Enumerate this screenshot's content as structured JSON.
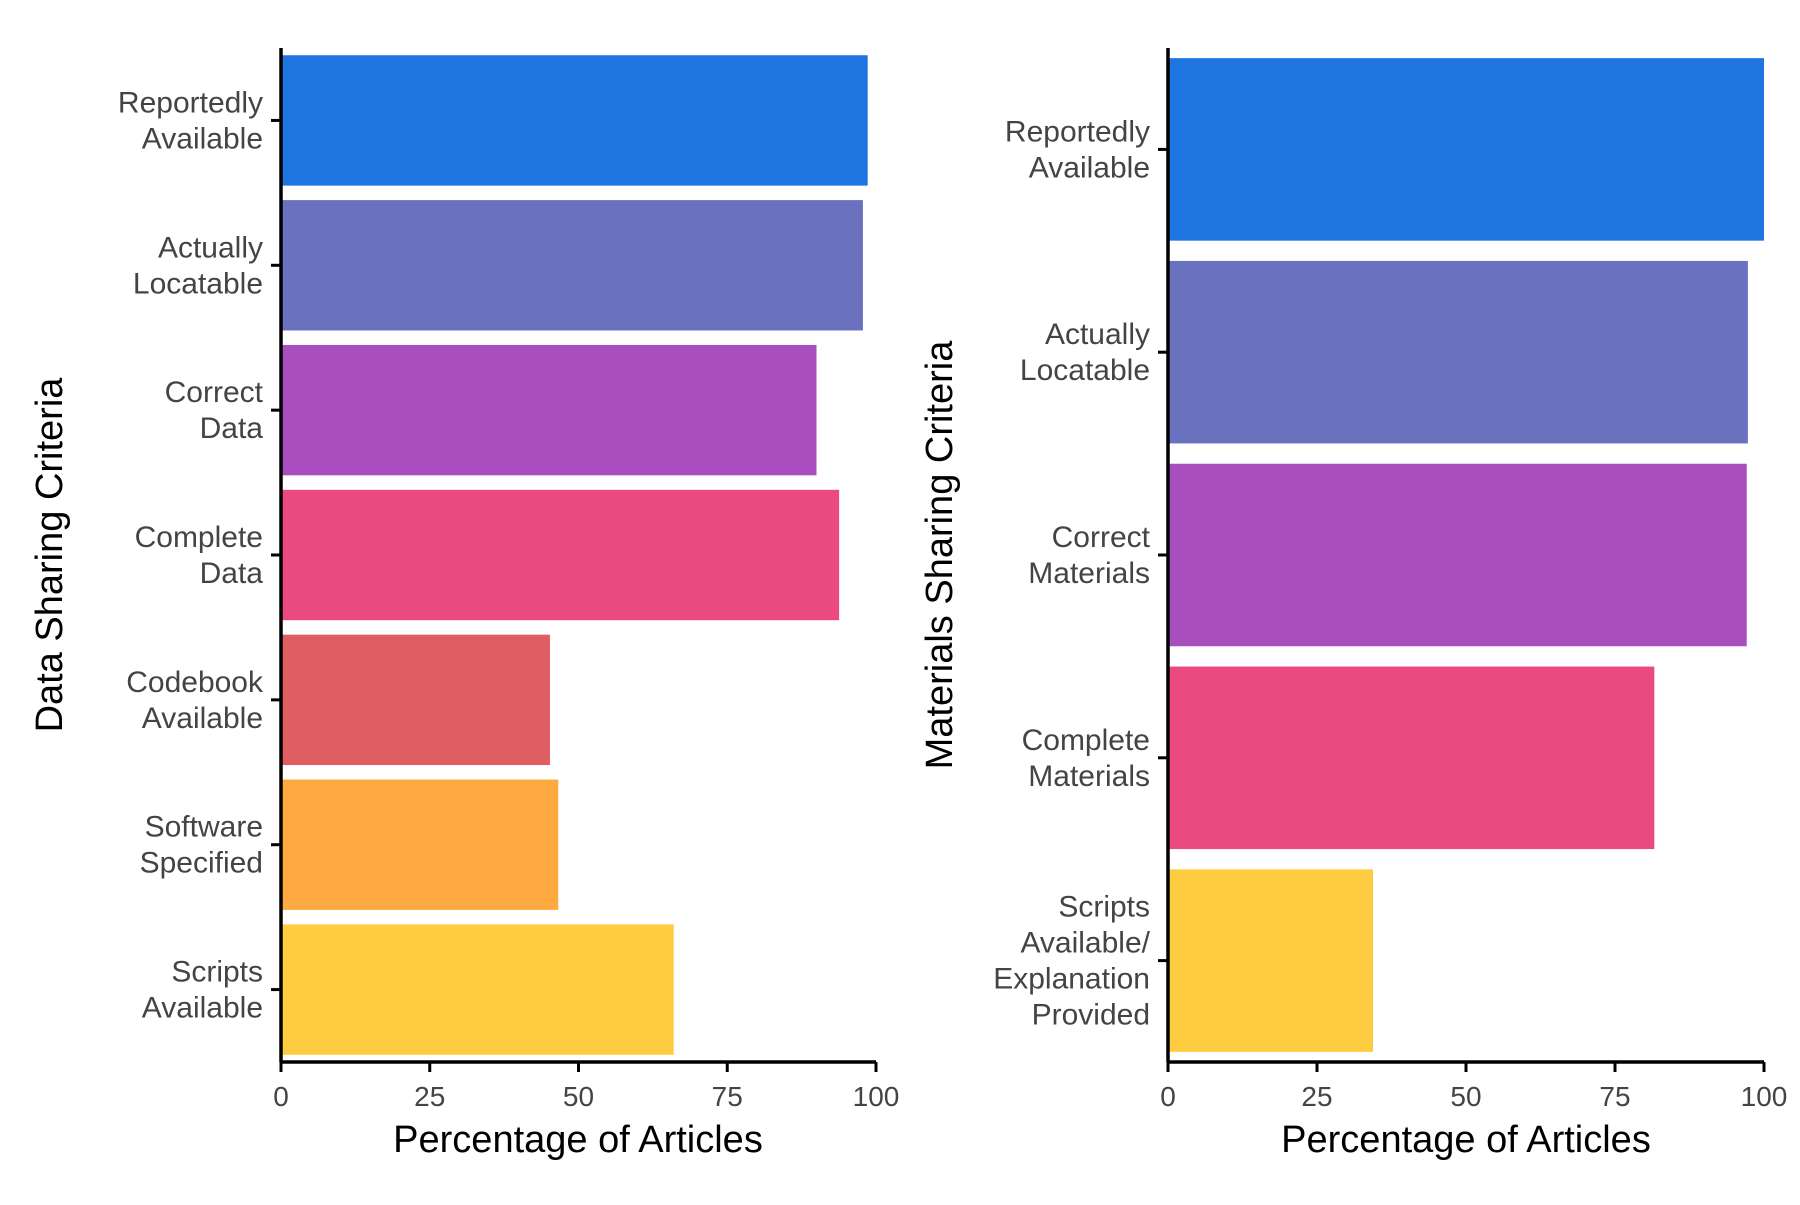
{
  "chart_data": [
    {
      "type": "bar",
      "orientation": "horizontal",
      "xlabel": "Percentage of Articles",
      "ylabel": "Data Sharing Criteria",
      "xlim": [
        0,
        100
      ],
      "xticks": [
        "0",
        "25",
        "50",
        "75",
        "100"
      ],
      "categories": [
        [
          "Reportedly",
          "Available"
        ],
        [
          "Actually",
          "Locatable"
        ],
        [
          "Correct",
          "Data"
        ],
        [
          "Complete",
          "Data"
        ],
        [
          "Codebook",
          "Available"
        ],
        [
          "Software",
          "Specified"
        ],
        [
          "Scripts",
          "Available"
        ]
      ],
      "values": [
        98.6,
        97.8,
        90.0,
        93.8,
        45.2,
        46.6,
        66.0
      ],
      "colors": [
        "#1E74E0",
        "#6A72BF",
        "#A84EBE",
        "#EA4A80",
        "#DE5E62",
        "#FFA941",
        "#FDCC40"
      ],
      "grid": false,
      "legend": "none"
    },
    {
      "type": "bar",
      "orientation": "horizontal",
      "xlabel": "Percentage of Articles",
      "ylabel": "Materials Sharing Criteria",
      "xlim": [
        0,
        100
      ],
      "xticks": [
        "0",
        "25",
        "50",
        "75",
        "100"
      ],
      "categories": [
        [
          "Reportedly",
          "Available"
        ],
        [
          "Actually",
          "Locatable"
        ],
        [
          "Correct",
          "Materials"
        ],
        [
          "Complete",
          "Materials"
        ],
        [
          "Scripts",
          "Available/",
          "Explanation",
          "Provided"
        ]
      ],
      "values": [
        100,
        97.3,
        97.1,
        81.6,
        34.4
      ],
      "colors": [
        "#1E74E0",
        "#6A72BF",
        "#A84EBE",
        "#EA4A80",
        "#FDCC40"
      ],
      "grid": false,
      "legend": "none"
    }
  ]
}
